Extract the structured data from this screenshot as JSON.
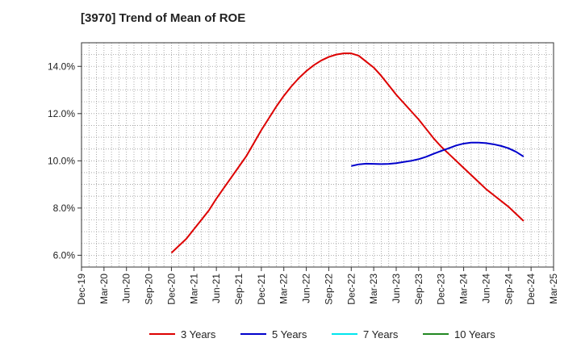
{
  "chart_data": {
    "type": "line",
    "title": "[3970]  Trend of Mean of ROE",
    "xlabel": "",
    "ylabel": "",
    "x_tick_labels": [
      "Dec-19",
      "Mar-20",
      "Jun-20",
      "Sep-20",
      "Dec-20",
      "Mar-21",
      "Jun-21",
      "Sep-21",
      "Dec-21",
      "Mar-22",
      "Jun-22",
      "Sep-22",
      "Dec-22",
      "Mar-23",
      "Jun-23",
      "Sep-23",
      "Dec-23",
      "Mar-24",
      "Jun-24",
      "Sep-24",
      "Dec-24",
      "Mar-25"
    ],
    "y_ticks": [
      6.0,
      8.0,
      10.0,
      12.0,
      14.0
    ],
    "y_tick_labels": [
      "6.0%",
      "8.0%",
      "10.0%",
      "12.0%",
      "14.0%"
    ],
    "ylim": [
      5.5,
      15.0
    ],
    "grid": true,
    "legend_position": "bottom",
    "series": [
      {
        "name": "3 Years",
        "color": "#dd0000",
        "points": [
          [
            "Dec-20",
            6.1
          ],
          [
            "Jan-21",
            6.4
          ],
          [
            "Feb-21",
            6.7
          ],
          [
            "Mar-21",
            7.1
          ],
          [
            "Apr-21",
            7.5
          ],
          [
            "May-21",
            7.9
          ],
          [
            "Jun-21",
            8.4
          ],
          [
            "Jul-21",
            8.85
          ],
          [
            "Aug-21",
            9.3
          ],
          [
            "Sep-21",
            9.75
          ],
          [
            "Oct-21",
            10.2
          ],
          [
            "Nov-21",
            10.75
          ],
          [
            "Dec-21",
            11.3
          ],
          [
            "Jan-22",
            11.8
          ],
          [
            "Feb-22",
            12.3
          ],
          [
            "Mar-22",
            12.75
          ],
          [
            "Apr-22",
            13.15
          ],
          [
            "May-22",
            13.5
          ],
          [
            "Jun-22",
            13.8
          ],
          [
            "Jul-22",
            14.05
          ],
          [
            "Aug-22",
            14.25
          ],
          [
            "Sep-22",
            14.4
          ],
          [
            "Oct-22",
            14.5
          ],
          [
            "Nov-22",
            14.55
          ],
          [
            "Dec-22",
            14.55
          ],
          [
            "Jan-23",
            14.45
          ],
          [
            "Feb-23",
            14.2
          ],
          [
            "Mar-23",
            13.95
          ],
          [
            "Apr-23",
            13.6
          ],
          [
            "May-23",
            13.2
          ],
          [
            "Jun-23",
            12.8
          ],
          [
            "Jul-23",
            12.45
          ],
          [
            "Aug-23",
            12.1
          ],
          [
            "Sep-23",
            11.75
          ],
          [
            "Oct-23",
            11.35
          ],
          [
            "Nov-23",
            10.95
          ],
          [
            "Dec-23",
            10.6
          ],
          [
            "Jan-24",
            10.3
          ],
          [
            "Feb-24",
            10.0
          ],
          [
            "Mar-24",
            9.7
          ],
          [
            "Apr-24",
            9.4
          ],
          [
            "May-24",
            9.1
          ],
          [
            "Jun-24",
            8.8
          ],
          [
            "Jul-24",
            8.55
          ],
          [
            "Aug-24",
            8.3
          ],
          [
            "Sep-24",
            8.05
          ],
          [
            "Oct-24",
            7.75
          ],
          [
            "Nov-24",
            7.45
          ]
        ]
      },
      {
        "name": "5 Years",
        "color": "#0000cc",
        "points": [
          [
            "Dec-22",
            9.78
          ],
          [
            "Jan-23",
            9.85
          ],
          [
            "Feb-23",
            9.88
          ],
          [
            "Mar-23",
            9.87
          ],
          [
            "Apr-23",
            9.86
          ],
          [
            "May-23",
            9.87
          ],
          [
            "Jun-23",
            9.9
          ],
          [
            "Jul-23",
            9.95
          ],
          [
            "Aug-23",
            10.0
          ],
          [
            "Sep-23",
            10.07
          ],
          [
            "Oct-23",
            10.17
          ],
          [
            "Nov-23",
            10.3
          ],
          [
            "Dec-23",
            10.42
          ],
          [
            "Jan-24",
            10.53
          ],
          [
            "Feb-24",
            10.65
          ],
          [
            "Mar-24",
            10.73
          ],
          [
            "Apr-24",
            10.77
          ],
          [
            "May-24",
            10.77
          ],
          [
            "Jun-24",
            10.75
          ],
          [
            "Jul-24",
            10.7
          ],
          [
            "Aug-24",
            10.63
          ],
          [
            "Sep-24",
            10.53
          ],
          [
            "Oct-24",
            10.38
          ],
          [
            "Nov-24",
            10.18
          ]
        ]
      },
      {
        "name": "7 Years",
        "color": "#00e5ee",
        "points": []
      },
      {
        "name": "10 Years",
        "color": "#228822",
        "points": []
      }
    ]
  }
}
